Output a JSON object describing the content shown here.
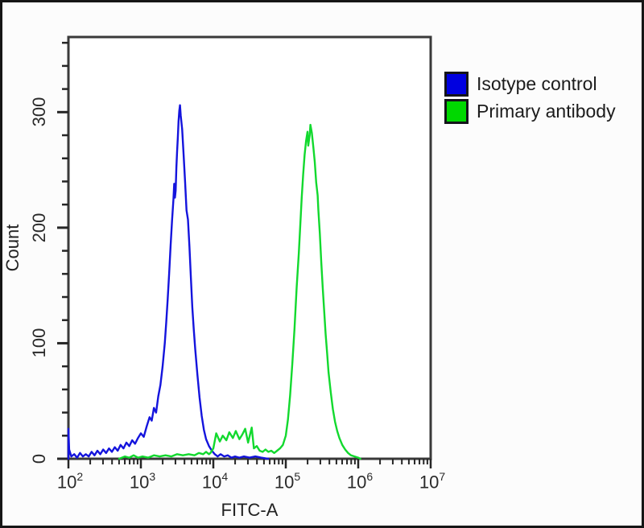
{
  "figure": {
    "background": "#fcfcfc",
    "border_color": "#161616"
  },
  "legend": {
    "items": [
      {
        "label": "Isotype control",
        "color": "#0000e0"
      },
      {
        "label": "Primary antibody",
        "color": "#00d800"
      }
    ]
  },
  "chart_data": {
    "type": "line",
    "subtype": "flow_cytometry_histogram_overlay",
    "title": "",
    "xlabel": "FITC-A",
    "ylabel": "Count",
    "x_scale": "log",
    "x_tick_base": 10,
    "x_tick_exponents": [
      2,
      3,
      4,
      5,
      6,
      7
    ],
    "x_minor_ticks": "log-spaced at 2-9 within each decade",
    "xlim_log10": [
      2,
      7
    ],
    "ylim": [
      0,
      365
    ],
    "y_major_ticks": [
      0,
      100,
      200,
      300
    ],
    "y_minor_tick_step": 20,
    "grid": false,
    "axis_color": "#3a3a3a",
    "legend_position": "outside top-right",
    "series": [
      {
        "name": "Isotype control",
        "color": "#1414dd",
        "points_log10x_count": [
          [
            2.0,
            0
          ],
          [
            2.0,
            26
          ],
          [
            2.01,
            8
          ],
          [
            2.04,
            2
          ],
          [
            2.08,
            4
          ],
          [
            2.12,
            1
          ],
          [
            2.16,
            5
          ],
          [
            2.2,
            2
          ],
          [
            2.24,
            4
          ],
          [
            2.28,
            2
          ],
          [
            2.32,
            6
          ],
          [
            2.36,
            3
          ],
          [
            2.4,
            7
          ],
          [
            2.44,
            4
          ],
          [
            2.48,
            8
          ],
          [
            2.52,
            5
          ],
          [
            2.56,
            9
          ],
          [
            2.6,
            6
          ],
          [
            2.64,
            10
          ],
          [
            2.68,
            7
          ],
          [
            2.72,
            12
          ],
          [
            2.76,
            9
          ],
          [
            2.8,
            14
          ],
          [
            2.84,
            11
          ],
          [
            2.88,
            16
          ],
          [
            2.92,
            13
          ],
          [
            2.96,
            18
          ],
          [
            3.0,
            22
          ],
          [
            3.04,
            19
          ],
          [
            3.08,
            28
          ],
          [
            3.12,
            36
          ],
          [
            3.15,
            33
          ],
          [
            3.18,
            44
          ],
          [
            3.21,
            40
          ],
          [
            3.24,
            54
          ],
          [
            3.27,
            64
          ],
          [
            3.3,
            80
          ],
          [
            3.33,
            100
          ],
          [
            3.35,
            118
          ],
          [
            3.37,
            138
          ],
          [
            3.39,
            160
          ],
          [
            3.41,
            184
          ],
          [
            3.43,
            206
          ],
          [
            3.45,
            225
          ],
          [
            3.46,
            238
          ],
          [
            3.47,
            226
          ],
          [
            3.48,
            232
          ],
          [
            3.49,
            252
          ],
          [
            3.5,
            266
          ],
          [
            3.51,
            278
          ],
          [
            3.52,
            292
          ],
          [
            3.53,
            301
          ],
          [
            3.54,
            306
          ],
          [
            3.55,
            297
          ],
          [
            3.57,
            285
          ],
          [
            3.59,
            263
          ],
          [
            3.61,
            240
          ],
          [
            3.63,
            215
          ],
          [
            3.65,
            207
          ],
          [
            3.67,
            184
          ],
          [
            3.69,
            157
          ],
          [
            3.71,
            131
          ],
          [
            3.73,
            112
          ],
          [
            3.75,
            95
          ],
          [
            3.78,
            73
          ],
          [
            3.81,
            53
          ],
          [
            3.84,
            37
          ],
          [
            3.87,
            25
          ],
          [
            3.9,
            17
          ],
          [
            3.94,
            11
          ],
          [
            3.98,
            7
          ],
          [
            4.02,
            4
          ],
          [
            4.06,
            2
          ],
          [
            4.1,
            4
          ],
          [
            4.15,
            2
          ],
          [
            4.2,
            3
          ],
          [
            4.25,
            1
          ],
          [
            4.3,
            2
          ],
          [
            4.36,
            1
          ],
          [
            4.42,
            2
          ],
          [
            4.5,
            1
          ],
          [
            4.58,
            2
          ],
          [
            4.66,
            1
          ],
          [
            4.76,
            0
          ]
        ]
      },
      {
        "name": "Primary antibody",
        "color": "#12d92e",
        "points_log10x_count": [
          [
            2.7,
            0
          ],
          [
            2.78,
            2
          ],
          [
            2.84,
            1
          ],
          [
            2.9,
            3
          ],
          [
            2.96,
            1
          ],
          [
            3.02,
            2
          ],
          [
            3.1,
            1
          ],
          [
            3.18,
            3
          ],
          [
            3.26,
            2
          ],
          [
            3.34,
            3
          ],
          [
            3.42,
            2
          ],
          [
            3.5,
            4
          ],
          [
            3.58,
            3
          ],
          [
            3.66,
            4
          ],
          [
            3.74,
            3
          ],
          [
            3.8,
            5
          ],
          [
            3.86,
            4
          ],
          [
            3.9,
            6
          ],
          [
            3.94,
            4
          ],
          [
            3.96,
            5
          ],
          [
            4.0,
            9
          ],
          [
            4.04,
            22
          ],
          [
            4.09,
            15
          ],
          [
            4.13,
            20
          ],
          [
            4.18,
            16
          ],
          [
            4.22,
            23
          ],
          [
            4.27,
            18
          ],
          [
            4.31,
            24
          ],
          [
            4.36,
            17
          ],
          [
            4.4,
            21
          ],
          [
            4.44,
            26
          ],
          [
            4.48,
            14
          ],
          [
            4.53,
            27
          ],
          [
            4.56,
            9
          ],
          [
            4.6,
            11
          ],
          [
            4.64,
            7
          ],
          [
            4.68,
            6
          ],
          [
            4.72,
            8
          ],
          [
            4.76,
            6
          ],
          [
            4.8,
            7
          ],
          [
            4.84,
            5
          ],
          [
            4.88,
            7
          ],
          [
            4.92,
            9
          ],
          [
            4.96,
            12
          ],
          [
            5.0,
            20
          ],
          [
            5.03,
            34
          ],
          [
            5.06,
            55
          ],
          [
            5.09,
            82
          ],
          [
            5.12,
            112
          ],
          [
            5.15,
            148
          ],
          [
            5.18,
            178
          ],
          [
            5.2,
            202
          ],
          [
            5.22,
            226
          ],
          [
            5.24,
            246
          ],
          [
            5.26,
            263
          ],
          [
            5.28,
            275
          ],
          [
            5.3,
            283
          ],
          [
            5.31,
            271
          ],
          [
            5.33,
            280
          ],
          [
            5.34,
            289
          ],
          [
            5.36,
            282
          ],
          [
            5.38,
            270
          ],
          [
            5.4,
            257
          ],
          [
            5.42,
            239
          ],
          [
            5.44,
            228
          ],
          [
            5.45,
            215
          ],
          [
            5.47,
            195
          ],
          [
            5.49,
            170
          ],
          [
            5.51,
            148
          ],
          [
            5.53,
            128
          ],
          [
            5.55,
            108
          ],
          [
            5.57,
            92
          ],
          [
            5.59,
            75
          ],
          [
            5.62,
            58
          ],
          [
            5.65,
            43
          ],
          [
            5.68,
            32
          ],
          [
            5.71,
            24
          ],
          [
            5.74,
            18
          ],
          [
            5.78,
            12
          ],
          [
            5.82,
            8
          ],
          [
            5.86,
            5
          ],
          [
            5.9,
            3
          ],
          [
            5.95,
            2
          ],
          [
            6.0,
            1
          ],
          [
            6.03,
            0
          ]
        ]
      }
    ]
  }
}
